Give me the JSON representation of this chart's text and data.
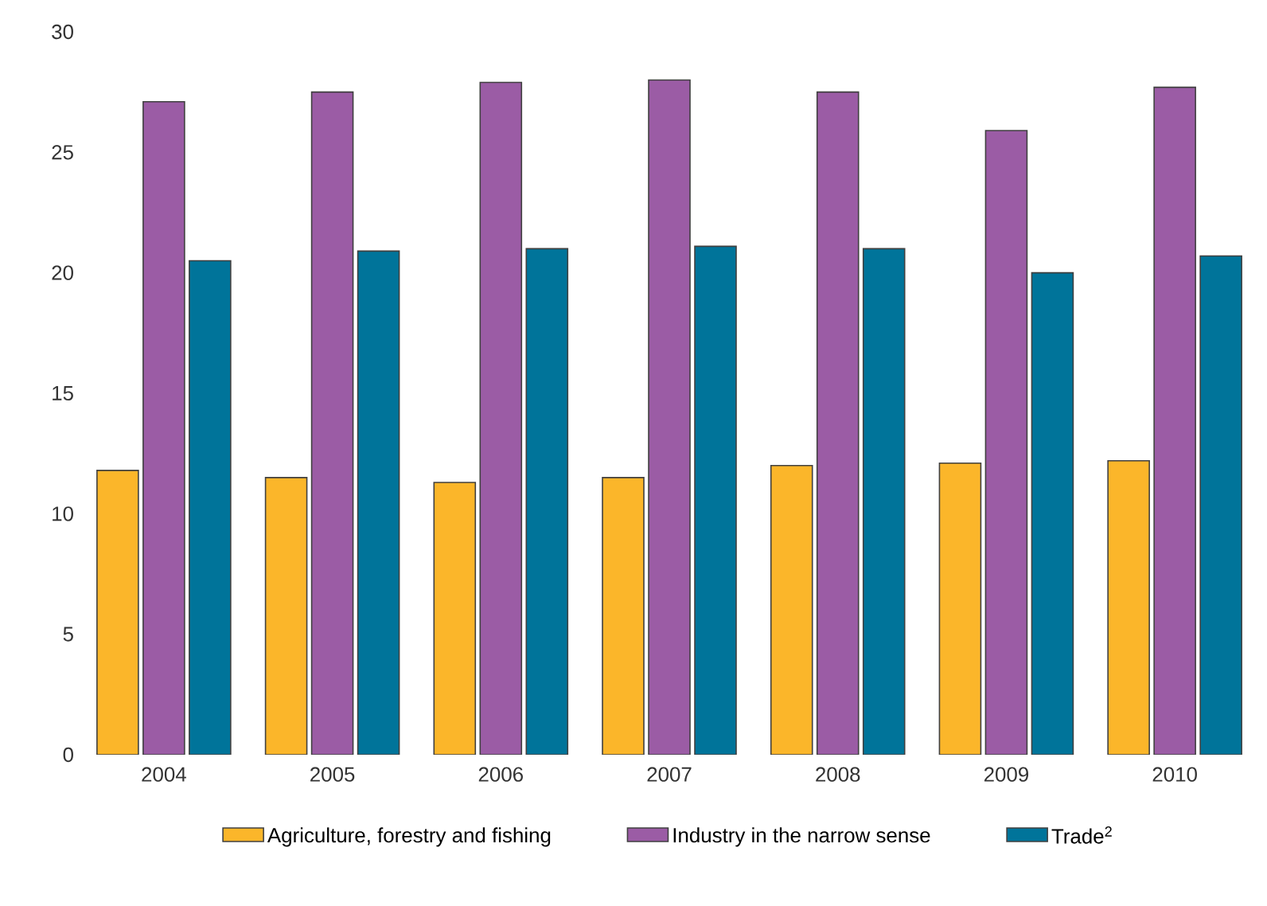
{
  "chart_data": {
    "type": "bar",
    "categories": [
      "2004",
      "2005",
      "2006",
      "2007",
      "2008",
      "2009",
      "2010"
    ],
    "series": [
      {
        "name": "Agriculture, forestry and fishing",
        "color": "#fbb62a",
        "values": [
          11.8,
          11.5,
          11.3,
          11.5,
          12.0,
          12.1,
          12.2
        ]
      },
      {
        "name": "Industry in the narrow sense",
        "color": "#9b5ca5",
        "values": [
          27.1,
          27.5,
          27.9,
          28.0,
          27.5,
          25.9,
          27.7
        ]
      },
      {
        "name": "Trade$^{2}$",
        "color": "#00749a",
        "values": [
          20.5,
          20.9,
          21.0,
          21.1,
          21.0,
          20.0,
          20.7
        ]
      }
    ],
    "ylim": [
      0,
      30
    ],
    "yticks": [
      0,
      5,
      10,
      15,
      20,
      25,
      30
    ],
    "grid": false,
    "legend": "bottom"
  }
}
